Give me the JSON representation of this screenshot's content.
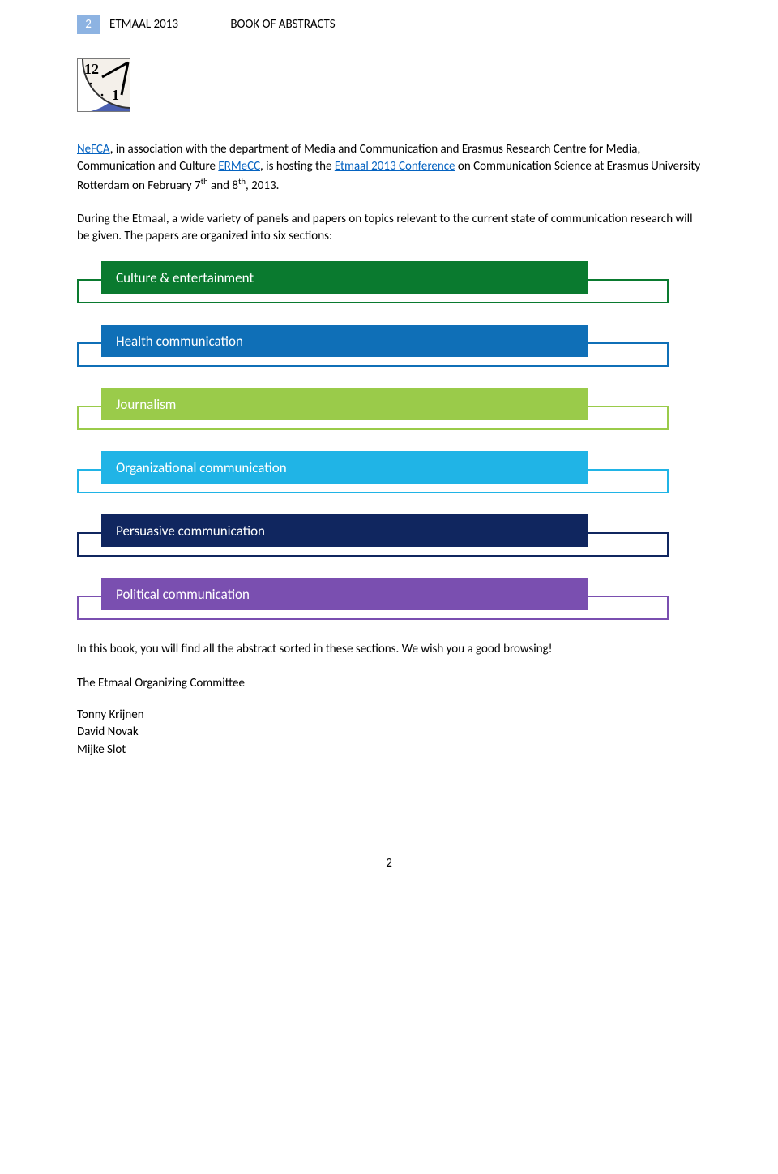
{
  "header": {
    "page_number": "2",
    "title": "ETMAAL 2013",
    "subtitle": "BOOK OF ABSTRACTS"
  },
  "intro": {
    "link_nefca": "NeFCA",
    "text1": ", in association with the department of Media and Communication and Erasmus Research Centre for Media, Communication and Culture ",
    "link_ermecc": "ERMeCC",
    "text2": ", is hosting the ",
    "link_etmaal": "Etmaal 2013 Conference",
    "text3": " on Communication Science at Erasmus University Rotterdam on February 7",
    "sup1": "th",
    "text4": " and 8",
    "sup2": "th",
    "text5": ", 2013."
  },
  "para2": "During the Etmaal, a wide variety of panels and papers on topics relevant to the current state of communication research will be given. The papers are organized into six sections:",
  "sections": [
    {
      "label": "Culture & entertainment",
      "top_bg": "#0a7a2f",
      "under_border": "#0a7a2f"
    },
    {
      "label": "Health communication",
      "top_bg": "#0f6fb7",
      "under_border": "#0f6fb7"
    },
    {
      "label": "Journalism",
      "top_bg": "#9acb4a",
      "under_border": "#9acb4a"
    },
    {
      "label": "Organizational communication",
      "top_bg": "#20b4e6",
      "under_border": "#20b4e6"
    },
    {
      "label": "Persuasive communication",
      "top_bg": "#10265f",
      "under_border": "#10265f"
    },
    {
      "label": "Political communication",
      "top_bg": "#7a4fb0",
      "under_border": "#7a4fb0"
    }
  ],
  "closing": "In this book, you will find all the abstract sorted in these sections. We wish you a good browsing!",
  "committee_line": "The Etmaal Organizing Committee",
  "names": [
    "Tonny Krijnen",
    "David Novak",
    "Mijke Slot"
  ],
  "footer_page": "2"
}
